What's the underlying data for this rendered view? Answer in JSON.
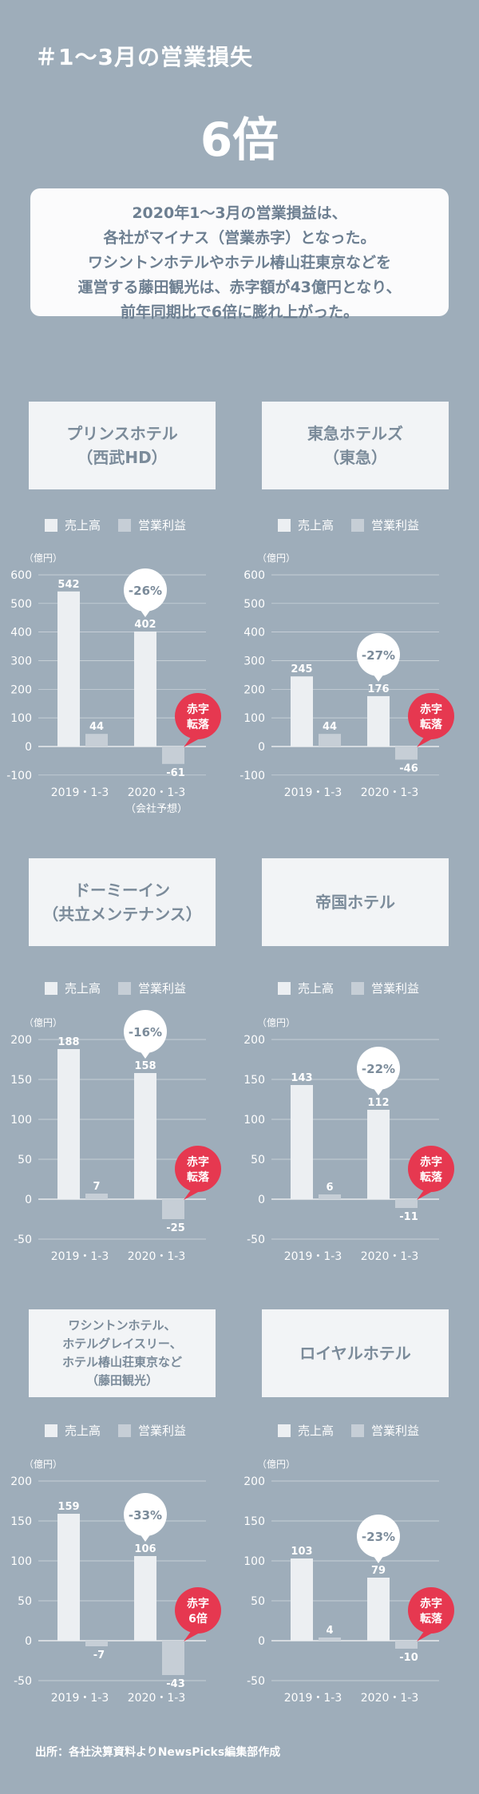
{
  "header": {
    "title": "＃1～3月の営業損失",
    "headline_value": "6倍",
    "description_lines": [
      "2020年1～3月の営業損益は、",
      "各社がマイナス（営業赤字）となった。",
      "ワシントンホテルやホテル椿山荘東京などを",
      "運営する藤田観光は、赤字額が43億円となり、",
      "前年同期比で6倍に膨れ上がった。"
    ]
  },
  "legend": {
    "revenue": "売上高",
    "operating_profit": "営業利益"
  },
  "colors": {
    "background": "#9eadba",
    "revenue_bar": "#eceff2",
    "profit_bar": "#c6ced6",
    "badge": "#e63850",
    "card_text": "#7b8b9a"
  },
  "source": "出所：各社決算資料よりNewsPicks編集部作成",
  "chart_data": [
    {
      "type": "bar",
      "company_lines": [
        "プリンスホテル",
        "（西武HD）"
      ],
      "ylabel": "（億円）",
      "ylim": [
        -100,
        600
      ],
      "yticks": [
        600,
        500,
        400,
        300,
        200,
        100,
        0,
        -100
      ],
      "categories": [
        "2019・1-3",
        "2020・1-3"
      ],
      "category_note": [
        "",
        "（会社予想）"
      ],
      "series": [
        {
          "name": "売上高",
          "values": [
            542,
            402
          ]
        },
        {
          "name": "営業利益",
          "values": [
            44,
            -61
          ]
        }
      ],
      "change": "-26%",
      "badge": [
        "赤字",
        "転落"
      ]
    },
    {
      "type": "bar",
      "company_lines": [
        "東急ホテルズ",
        "（東急）"
      ],
      "ylabel": "（億円）",
      "ylim": [
        -100,
        600
      ],
      "yticks": [
        600,
        500,
        400,
        300,
        200,
        100,
        0,
        -100
      ],
      "categories": [
        "2019・1-3",
        "2020・1-3"
      ],
      "category_note": [
        "",
        ""
      ],
      "series": [
        {
          "name": "売上高",
          "values": [
            245,
            176
          ]
        },
        {
          "name": "営業利益",
          "values": [
            44,
            -46
          ]
        }
      ],
      "change": "-27%",
      "badge": [
        "赤字",
        "転落"
      ]
    },
    {
      "type": "bar",
      "company_lines": [
        "ドーミーイン",
        "（共立メンテナンス）"
      ],
      "ylabel": "（億円）",
      "ylim": [
        -50,
        200
      ],
      "yticks": [
        200,
        150,
        100,
        50,
        0,
        -50
      ],
      "categories": [
        "2019・1-3",
        "2020・1-3"
      ],
      "category_note": [
        "",
        ""
      ],
      "series": [
        {
          "name": "売上高",
          "values": [
            188,
            158
          ]
        },
        {
          "name": "営業利益",
          "values": [
            7,
            -25
          ]
        }
      ],
      "change": "-16%",
      "badge": [
        "赤字",
        "転落"
      ]
    },
    {
      "type": "bar",
      "company_lines": [
        "帝国ホテル"
      ],
      "ylabel": "（億円）",
      "ylim": [
        -50,
        200
      ],
      "yticks": [
        200,
        150,
        100,
        50,
        0,
        -50
      ],
      "categories": [
        "2019・1-3",
        "2020・1-3"
      ],
      "category_note": [
        "",
        ""
      ],
      "series": [
        {
          "name": "売上高",
          "values": [
            143,
            112
          ]
        },
        {
          "name": "営業利益",
          "values": [
            6,
            -11
          ]
        }
      ],
      "change": "-22%",
      "badge": [
        "赤字",
        "転落"
      ]
    },
    {
      "type": "bar",
      "company_lines": [
        "ワシントンホテル、",
        "ホテルグレイスリー、",
        "ホテル椿山荘東京など",
        "（藤田観光）"
      ],
      "ylabel": "（億円）",
      "ylim": [
        -50,
        200
      ],
      "yticks": [
        200,
        150,
        100,
        50,
        0,
        -50
      ],
      "categories": [
        "2019・1-3",
        "2020・1-3"
      ],
      "category_note": [
        "",
        ""
      ],
      "series": [
        {
          "name": "売上高",
          "values": [
            159,
            106
          ]
        },
        {
          "name": "営業利益",
          "values": [
            -7,
            -43
          ]
        }
      ],
      "change": "-33%",
      "badge": [
        "赤字",
        "6倍"
      ]
    },
    {
      "type": "bar",
      "company_lines": [
        "ロイヤルホテル"
      ],
      "ylabel": "（億円）",
      "ylim": [
        -50,
        200
      ],
      "yticks": [
        200,
        150,
        100,
        50,
        0,
        -50
      ],
      "categories": [
        "2019・1-3",
        "2020・1-3"
      ],
      "category_note": [
        "",
        ""
      ],
      "series": [
        {
          "name": "売上高",
          "values": [
            103,
            79
          ]
        },
        {
          "name": "営業利益",
          "values": [
            4,
            -10
          ]
        }
      ],
      "change": "-23%",
      "badge": [
        "赤字",
        "転落"
      ]
    }
  ]
}
